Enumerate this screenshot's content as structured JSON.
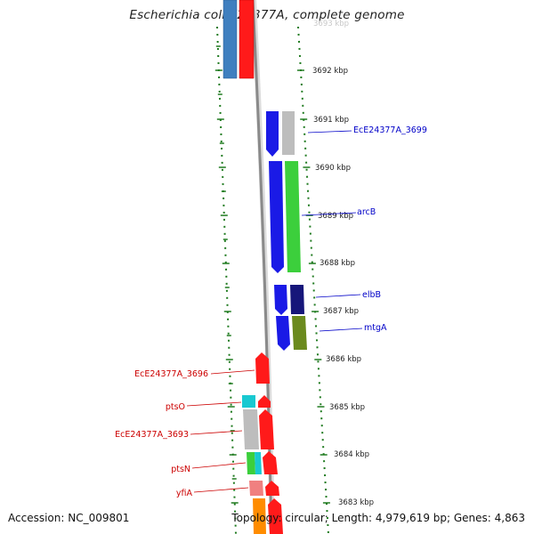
{
  "title": "Escherichia coli E24377A, complete genome",
  "footer": {
    "accession": "Accession: NC_009801",
    "summary": "Topology: circular; Length: 4,979,619 bp; Genes: 4,863"
  },
  "colors": {
    "backbone": "#8a8a8a",
    "tick": "#1f7a1f",
    "label_forward": "#0000c8",
    "label_reverse": "#cc0000"
  },
  "scale": {
    "partial_top_label": "3693 kbp",
    "ticks": [
      "3692 kbp",
      "3691 kbp",
      "3690 kbp",
      "3689 kbp",
      "3688 kbp",
      "3687 kbp",
      "3686 kbp",
      "3685 kbp",
      "3684 kbp",
      "3683 kbp"
    ]
  },
  "labels": {
    "forward": [
      "EcE24377A_3699",
      "arcB",
      "elbB",
      "mtgA"
    ],
    "reverse": [
      "EcE24377A_3696",
      "ptsO",
      "EcE24377A_3693",
      "ptsN",
      "yfiA"
    ]
  },
  "features": [
    {
      "strand": "inner",
      "color": "#3f7fbf"
    },
    {
      "strand": "inner",
      "color": "#ff1a1a"
    },
    {
      "strand": "outer",
      "color": "#1a1ae6"
    },
    {
      "strand": "outer",
      "color": "#bdbdbd"
    },
    {
      "strand": "outer",
      "color": "#1a1ae6"
    },
    {
      "strand": "outer",
      "color": "#3ccf3c"
    },
    {
      "strand": "outer",
      "color": "#1a1ae6"
    },
    {
      "strand": "outer",
      "color": "#16167a"
    },
    {
      "strand": "outer",
      "color": "#1a1ae6"
    },
    {
      "strand": "outer",
      "color": "#6b8a1e"
    },
    {
      "strand": "inner",
      "color": "#ff1a1a"
    },
    {
      "strand": "inner",
      "color": "#19c9d1"
    },
    {
      "strand": "inner",
      "color": "#ff1a1a"
    },
    {
      "strand": "inner",
      "color": "#bdbdbd"
    },
    {
      "strand": "inner",
      "color": "#ff1a1a"
    },
    {
      "strand": "inner",
      "color": "#3ccf3c"
    },
    {
      "strand": "inner",
      "color": "#19c9d1"
    },
    {
      "strand": "inner",
      "color": "#ff1a1a"
    },
    {
      "strand": "inner",
      "color": "#f08080"
    },
    {
      "strand": "inner",
      "color": "#ff1a1a"
    },
    {
      "strand": "inner",
      "color": "#ff8c00"
    },
    {
      "strand": "inner",
      "color": "#ff1a1a"
    }
  ]
}
